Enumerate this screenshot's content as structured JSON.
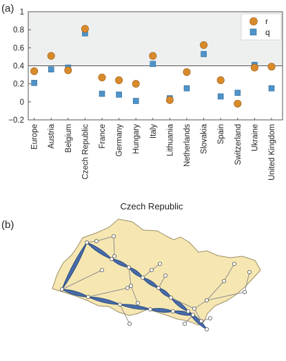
{
  "panels": {
    "a": "(a)",
    "b": "(b)"
  },
  "chart_data": [
    {
      "type": "scatter",
      "title": "",
      "xlabel": "",
      "ylabel": "",
      "ylim": [
        -0.2,
        1
      ],
      "yticks": [
        -0.2,
        0,
        0.2,
        0.4,
        0.6,
        0.8,
        1
      ],
      "yticklabels": [
        "−0.2",
        "0",
        "0.2",
        "0.4",
        "0.6",
        "0.8",
        "1"
      ],
      "threshold": 0.4,
      "grid": false,
      "legend_position": "top-right",
      "categories": [
        "Europe",
        "Austria",
        "Belgium",
        "Czech Republic",
        "France",
        "Germany",
        "Hungary",
        "Italy",
        "Lithuania",
        "Netherlands",
        "Slovakia",
        "Spain",
        "Switzerland",
        "Ukraine",
        "United Kingdom"
      ],
      "series": [
        {
          "name": "r",
          "marker": "circle",
          "color": "#d98a2b",
          "values": [
            0.34,
            0.51,
            0.35,
            0.81,
            0.27,
            0.24,
            0.2,
            0.51,
            0.02,
            0.33,
            0.63,
            0.24,
            -0.02,
            0.38,
            0.39
          ]
        },
        {
          "name": "q",
          "marker": "square",
          "color": "#4f93c8",
          "values": [
            0.21,
            0.36,
            0.38,
            0.76,
            0.09,
            0.08,
            0.01,
            0.42,
            0.04,
            0.15,
            0.53,
            0.06,
            0.1,
            0.41,
            0.15
          ]
        }
      ]
    }
  ],
  "map": {
    "title": "Czech Republic",
    "land_color": "#f6e7b2",
    "edge_color": "#3b63a8"
  }
}
